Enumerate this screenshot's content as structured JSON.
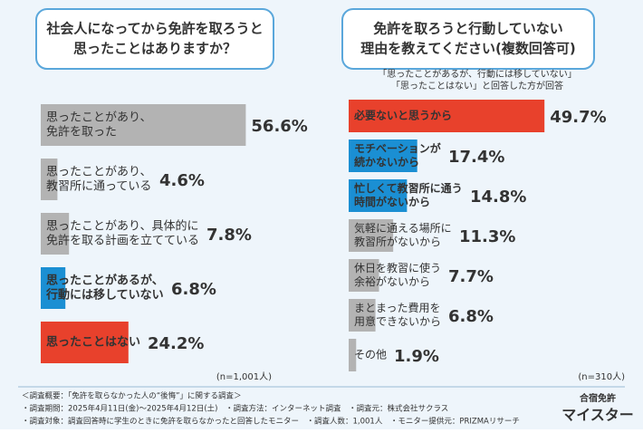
{
  "chart_data": [
    {
      "type": "bar",
      "orientation": "horizontal",
      "title": [
        "社会人になってから免許を取ろうと",
        "思ったことはありますか？"
      ],
      "categories": [
        [
          "思ったことがあり、",
          "免許を取った"
        ],
        [
          "思ったことがあり、",
          "教習所に通っている"
        ],
        [
          "思ったことがあり、具体的に",
          "免許を取る計画を立てている"
        ],
        [
          "思ったことがあるが、",
          "行動には移していない"
        ],
        [
          "思ったことはない"
        ]
      ],
      "values": [
        56.6,
        4.6,
        7.8,
        6.8,
        24.2
      ],
      "value_labels": [
        "56.6%",
        "4.6%",
        "7.8%",
        "6.8%",
        "24.2%"
      ],
      "colors": [
        "#b3b3b3",
        "#b3b3b3",
        "#b3b3b3",
        "#1b8fd3",
        "#e8412c"
      ],
      "note": "(n=1,001人)"
    },
    {
      "type": "bar",
      "orientation": "horizontal",
      "title": [
        "免許を取ろうと行動していない",
        "理由を教えてください(複数回答可)"
      ],
      "subtitle": [
        "「思ったことがあるが、行動には移していない」",
        "「思ったことはない」と回答した方が回答"
      ],
      "categories": [
        [
          "必要ないと思うから"
        ],
        [
          "モチベーションが",
          "続かないから"
        ],
        [
          "忙しくて教習所に通う",
          "時間がないから"
        ],
        [
          "気軽に通える場所に",
          "教習所がないから"
        ],
        [
          "休日を教習に使う",
          "余裕がないから"
        ],
        [
          "まとまった費用を",
          "用意できないから"
        ],
        [
          "その他"
        ]
      ],
      "values": [
        49.7,
        17.4,
        14.8,
        11.3,
        7.7,
        6.8,
        1.9
      ],
      "value_labels": [
        "49.7%",
        "17.4%",
        "14.8%",
        "11.3%",
        "7.7%",
        "6.8%",
        "1.9%"
      ],
      "colors": [
        "#e8412c",
        "#1b8fd3",
        "#1b8fd3",
        "#b3b3b3",
        "#b3b3b3",
        "#b3b3b3",
        "#b3b3b3"
      ],
      "note": "(n=310人)"
    }
  ],
  "footer": [
    "＜調査概要：「免許を取らなかった人の“後悔”」に関する調査＞",
    "・調査期間：2025年4月11日(金)～2025年4月12日(土)　・調査方法：インターネット調査　・調査元：株式会社サクラス",
    "・調査対象：調査回答時に学生のときに免許を取らなかったと回答したモニター　・調査人数：1,001人　・モニター提供元：PRIZMAリサーチ"
  ],
  "logo": [
    "合宿免許",
    "マイスター"
  ]
}
